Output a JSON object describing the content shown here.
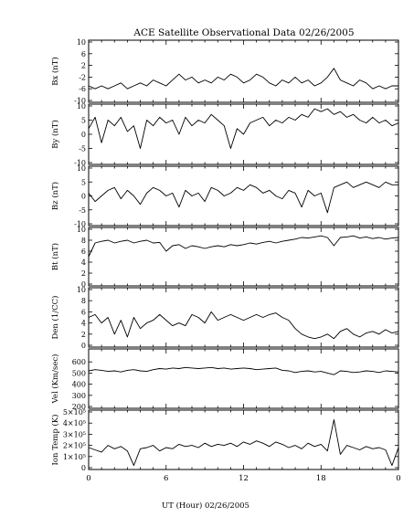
{
  "chart_data": {
    "type": "line",
    "title": "ACE Satellite Observational Data   02/26/2005",
    "xlabel": "UT (Hour)   02/26/2005",
    "x_ticks": [
      "0",
      "6",
      "12",
      "18",
      "0"
    ],
    "xlim": [
      0,
      24
    ],
    "panels": [
      {
        "ylabel": "Bx (nT)",
        "ylim": [
          -10,
          10
        ],
        "ticks": [
          "10",
          "6",
          "2",
          "-2",
          "-6",
          "-10"
        ],
        "tick_values": [
          10,
          6,
          2,
          -2,
          -6,
          -10
        ],
        "x": [
          0,
          0.5,
          1,
          1.5,
          2,
          2.5,
          3,
          3.5,
          4,
          4.5,
          5,
          5.5,
          6,
          6.5,
          7,
          7.5,
          8,
          8.5,
          9,
          9.5,
          10,
          10.5,
          11,
          11.5,
          12,
          12.5,
          13,
          13.5,
          14,
          14.5,
          15,
          15.5,
          16,
          16.5,
          17,
          17.5,
          18,
          18.5,
          19,
          19.5,
          20,
          20.5,
          21,
          21.5,
          22,
          22.5,
          23,
          23.5,
          24
        ],
        "values": [
          -5,
          -6,
          -5,
          -6,
          -5,
          -4,
          -6,
          -5,
          -4,
          -5,
          -3,
          -4,
          -5,
          -3,
          -1,
          -3,
          -2,
          -4,
          -3,
          -4,
          -2,
          -3,
          -1,
          -2,
          -4,
          -3,
          -1,
          -2,
          -4,
          -5,
          -3,
          -4,
          -2,
          -4,
          -3,
          -5,
          -4,
          -2,
          1,
          -3,
          -4,
          -5,
          -3,
          -4,
          -6,
          -5,
          -6,
          -5,
          -5
        ]
      },
      {
        "ylabel": "By (nT)",
        "ylim": [
          -10,
          10
        ],
        "ticks": [
          "10",
          "5",
          "0",
          "-5",
          "-10"
        ],
        "tick_values": [
          10,
          5,
          0,
          -5,
          -10
        ],
        "x": [
          0,
          0.5,
          1,
          1.5,
          2,
          2.5,
          3,
          3.5,
          4,
          4.5,
          5,
          5.5,
          6,
          6.5,
          7,
          7.5,
          8,
          8.5,
          9,
          9.5,
          10,
          10.5,
          11,
          11.5,
          12,
          12.5,
          13,
          13.5,
          14,
          14.5,
          15,
          15.5,
          16,
          16.5,
          17,
          17.5,
          18,
          18.5,
          19,
          19.5,
          20,
          20.5,
          21,
          21.5,
          22,
          22.5,
          23,
          23.5,
          24
        ],
        "values": [
          2,
          6,
          -3,
          5,
          3,
          6,
          1,
          3,
          -5,
          5,
          3,
          6,
          4,
          5,
          0,
          6,
          3,
          5,
          4,
          7,
          5,
          3,
          -5,
          2,
          0,
          4,
          5,
          6,
          3,
          5,
          4,
          6,
          5,
          7,
          6,
          9,
          8,
          9,
          7,
          8,
          6,
          7,
          5,
          4,
          6,
          4,
          5,
          3,
          4
        ]
      },
      {
        "ylabel": "Bz (nT)",
        "ylim": [
          -10,
          10
        ],
        "ticks": [
          "10",
          "5",
          "0",
          "-5",
          "-10"
        ],
        "tick_values": [
          10,
          5,
          0,
          -5,
          -10
        ],
        "x": [
          0,
          0.5,
          1,
          1.5,
          2,
          2.5,
          3,
          3.5,
          4,
          4.5,
          5,
          5.5,
          6,
          6.5,
          7,
          7.5,
          8,
          8.5,
          9,
          9.5,
          10,
          10.5,
          11,
          11.5,
          12,
          12.5,
          13,
          13.5,
          14,
          14.5,
          15,
          15.5,
          16,
          16.5,
          17,
          17.5,
          18,
          18.5,
          19,
          19.5,
          20,
          20.5,
          21,
          21.5,
          22,
          22.5,
          23,
          23.5,
          24
        ],
        "values": [
          1,
          -2,
          0,
          2,
          3,
          -1,
          2,
          0,
          -3,
          1,
          3,
          2,
          0,
          1,
          -4,
          2,
          0,
          1,
          -2,
          3,
          2,
          0,
          1,
          3,
          2,
          4,
          3,
          1,
          2,
          0,
          -1,
          2,
          1,
          -4,
          2,
          0,
          1,
          -6,
          3,
          4,
          5,
          3,
          4,
          5,
          4,
          3,
          5,
          4,
          4
        ]
      },
      {
        "ylabel": "Bt (nT)",
        "ylim": [
          0,
          10
        ],
        "ticks": [
          "10",
          "8",
          "6",
          "4",
          "2",
          "0"
        ],
        "tick_values": [
          10,
          8,
          6,
          4,
          2,
          0
        ],
        "x": [
          0,
          0.5,
          1,
          1.5,
          2,
          2.5,
          3,
          3.5,
          4,
          4.5,
          5,
          5.5,
          6,
          6.5,
          7,
          7.5,
          8,
          8.5,
          9,
          9.5,
          10,
          10.5,
          11,
          11.5,
          12,
          12.5,
          13,
          13.5,
          14,
          14.5,
          15,
          15.5,
          16,
          16.5,
          17,
          17.5,
          18,
          18.5,
          19,
          19.5,
          20,
          20.5,
          21,
          21.5,
          22,
          22.5,
          23,
          23.5,
          24
        ],
        "values": [
          5,
          7.5,
          7.8,
          8,
          7.5,
          7.8,
          8,
          7.5,
          7.8,
          8,
          7.5,
          7.6,
          6,
          7,
          7.2,
          6.5,
          7,
          6.8,
          6.5,
          6.8,
          7,
          6.8,
          7.2,
          7,
          7.2,
          7.5,
          7.3,
          7.6,
          7.8,
          7.5,
          7.8,
          8,
          8.2,
          8.5,
          8.4,
          8.6,
          8.8,
          8.5,
          7,
          8.5,
          8.6,
          8.8,
          8.4,
          8.6,
          8.3,
          8.5,
          8.2,
          8.4,
          8.5
        ]
      },
      {
        "ylabel": "Den (1/CC)",
        "ylim": [
          0,
          10
        ],
        "ticks": [
          "10",
          "8",
          "6",
          "4",
          "2",
          "0"
        ],
        "tick_values": [
          10,
          8,
          6,
          4,
          2,
          0
        ],
        "x": [
          0,
          0.5,
          1,
          1.5,
          2,
          2.5,
          3,
          3.5,
          4,
          4.5,
          5,
          5.5,
          6,
          6.5,
          7,
          7.5,
          8,
          8.5,
          9,
          9.5,
          10,
          10.5,
          11,
          11.5,
          12,
          12.5,
          13,
          13.5,
          14,
          14.5,
          15,
          15.5,
          16,
          16.5,
          17,
          17.5,
          18,
          18.5,
          19,
          19.5,
          20,
          20.5,
          21,
          21.5,
          22,
          22.5,
          23,
          23.5,
          24
        ],
        "values": [
          5,
          5.5,
          4,
          5,
          2,
          4.5,
          1.5,
          5,
          3,
          4,
          4.5,
          5.5,
          4.5,
          3.5,
          4,
          3.5,
          5.5,
          5,
          4,
          6,
          4.5,
          5,
          5.5,
          5,
          4.5,
          5,
          5.5,
          5,
          5.5,
          5.8,
          5,
          4.5,
          3,
          2,
          1.5,
          1.2,
          1.5,
          2,
          1.2,
          2.5,
          3,
          2,
          1.5,
          2.2,
          2.5,
          2,
          2.8,
          2.2,
          2.5
        ]
      },
      {
        "ylabel": "Vel (Km/sec)",
        "ylim": [
          200,
          700
        ],
        "ticks": [
          "600",
          "500",
          "400",
          "300",
          "200"
        ],
        "tick_values": [
          600,
          500,
          400,
          300,
          200
        ],
        "x": [
          0,
          0.5,
          1,
          1.5,
          2,
          2.5,
          3,
          3.5,
          4,
          4.5,
          5,
          5.5,
          6,
          6.5,
          7,
          7.5,
          8,
          8.5,
          9,
          9.5,
          10,
          10.5,
          11,
          11.5,
          12,
          12.5,
          13,
          13.5,
          14,
          14.5,
          15,
          15.5,
          16,
          16.5,
          17,
          17.5,
          18,
          18.5,
          19,
          19.5,
          20,
          20.5,
          21,
          21.5,
          22,
          22.5,
          23,
          23.5,
          24
        ],
        "values": [
          520,
          530,
          525,
          515,
          520,
          510,
          525,
          530,
          520,
          515,
          530,
          540,
          535,
          545,
          540,
          550,
          545,
          540,
          545,
          550,
          540,
          545,
          535,
          540,
          545,
          540,
          530,
          535,
          540,
          545,
          525,
          520,
          505,
          515,
          520,
          510,
          515,
          500,
          485,
          520,
          515,
          505,
          510,
          520,
          515,
          505,
          520,
          515,
          510
        ]
      },
      {
        "ylabel": "Ion Temp (K)",
        "ylim": [
          0,
          500000
        ],
        "ticks": [
          "5×10⁵",
          "4×10⁵",
          "3×10⁵",
          "2×10⁵",
          "1×10⁵",
          "0"
        ],
        "tick_values": [
          500000,
          400000,
          300000,
          200000,
          100000,
          0
        ],
        "x": [
          0,
          0.5,
          1,
          1.5,
          2,
          2.5,
          3,
          3.5,
          4,
          4.5,
          5,
          5.5,
          6,
          6.5,
          7,
          7.5,
          8,
          8.5,
          9,
          9.5,
          10,
          10.5,
          11,
          11.5,
          12,
          12.5,
          13,
          13.5,
          14,
          14.5,
          15,
          15.5,
          16,
          16.5,
          17,
          17.5,
          18,
          18.5,
          19,
          19.5,
          20,
          20.5,
          21,
          21.5,
          22,
          22.5,
          23,
          23.5,
          24
        ],
        "values": [
          180000,
          160000,
          140000,
          200000,
          170000,
          190000,
          150000,
          20000,
          170000,
          180000,
          200000,
          150000,
          180000,
          170000,
          210000,
          190000,
          200000,
          180000,
          220000,
          190000,
          210000,
          200000,
          220000,
          190000,
          230000,
          210000,
          240000,
          220000,
          190000,
          230000,
          210000,
          180000,
          200000,
          170000,
          220000,
          190000,
          210000,
          150000,
          430000,
          120000,
          200000,
          180000,
          160000,
          190000,
          170000,
          180000,
          160000,
          20000,
          180000
        ]
      }
    ]
  }
}
